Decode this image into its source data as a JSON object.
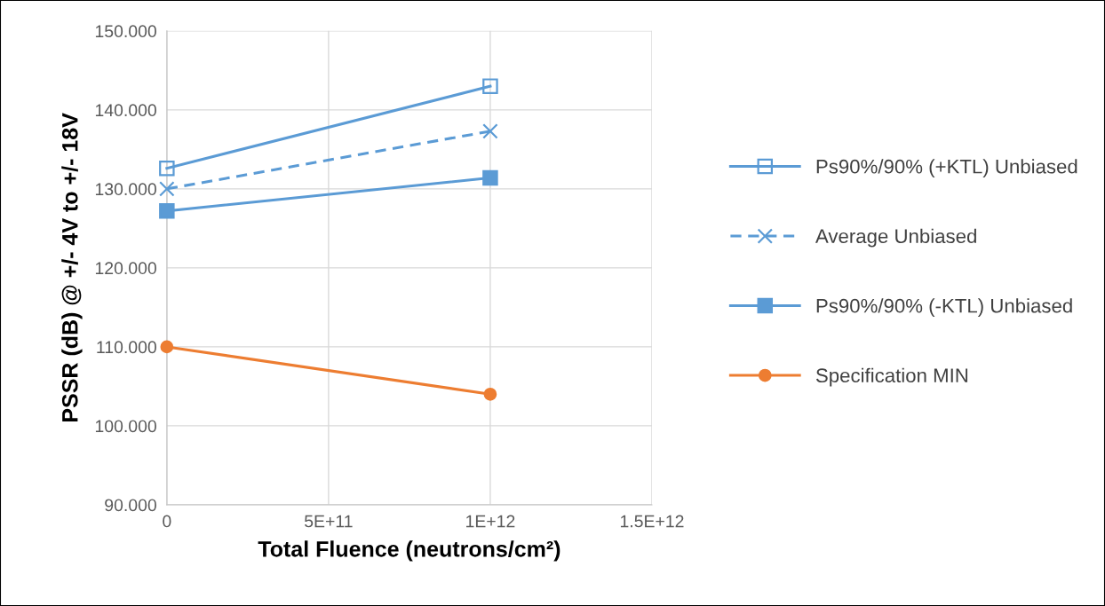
{
  "chart_data": {
    "type": "line",
    "xlabel": "Total Fluence (neutrons/cm²)",
    "ylabel": "PSSR (dB) @ +/- 4V to +/- 18V",
    "x": [
      0,
      1000000000000.0
    ],
    "series": [
      {
        "name": "Ps90%/90% (+KTL) Unbiased",
        "color": "#5b9bd5",
        "values": [
          132.6,
          143.0
        ],
        "marker": "square_open",
        "line_style": "solid"
      },
      {
        "name": "Average Unbiased",
        "color": "#5b9bd5",
        "values": [
          130.0,
          137.3
        ],
        "marker": "cross",
        "line_style": "dashed"
      },
      {
        "name": "Ps90%/90% (-KTL) Unbiased",
        "color": "#5b9bd5",
        "values": [
          127.2,
          131.4
        ],
        "marker": "square",
        "line_style": "solid"
      },
      {
        "name": "Specification MIN",
        "color": "#ed7d31",
        "values": [
          110,
          104
        ],
        "marker": "circle",
        "line_style": "solid"
      }
    ],
    "xlim": [
      0,
      1500000000000.0
    ],
    "xticks": [
      {
        "value": 0,
        "label": "0"
      },
      {
        "value": 500000000000.0,
        "label": "5E+11"
      },
      {
        "value": 1000000000000.0,
        "label": "1E+12"
      },
      {
        "value": 1500000000000.0,
        "label": "1.5E+12"
      }
    ],
    "ylim": [
      90,
      150
    ],
    "yticks": [
      {
        "value": 90,
        "label": "90.000"
      },
      {
        "value": 100,
        "label": "100.000"
      },
      {
        "value": 110,
        "label": "110.000"
      },
      {
        "value": 120,
        "label": "120.000"
      },
      {
        "value": 130,
        "label": "130.000"
      },
      {
        "value": 140,
        "label": "140.000"
      },
      {
        "value": 150,
        "label": "150.000"
      }
    ],
    "grid": true,
    "legend": "right"
  }
}
